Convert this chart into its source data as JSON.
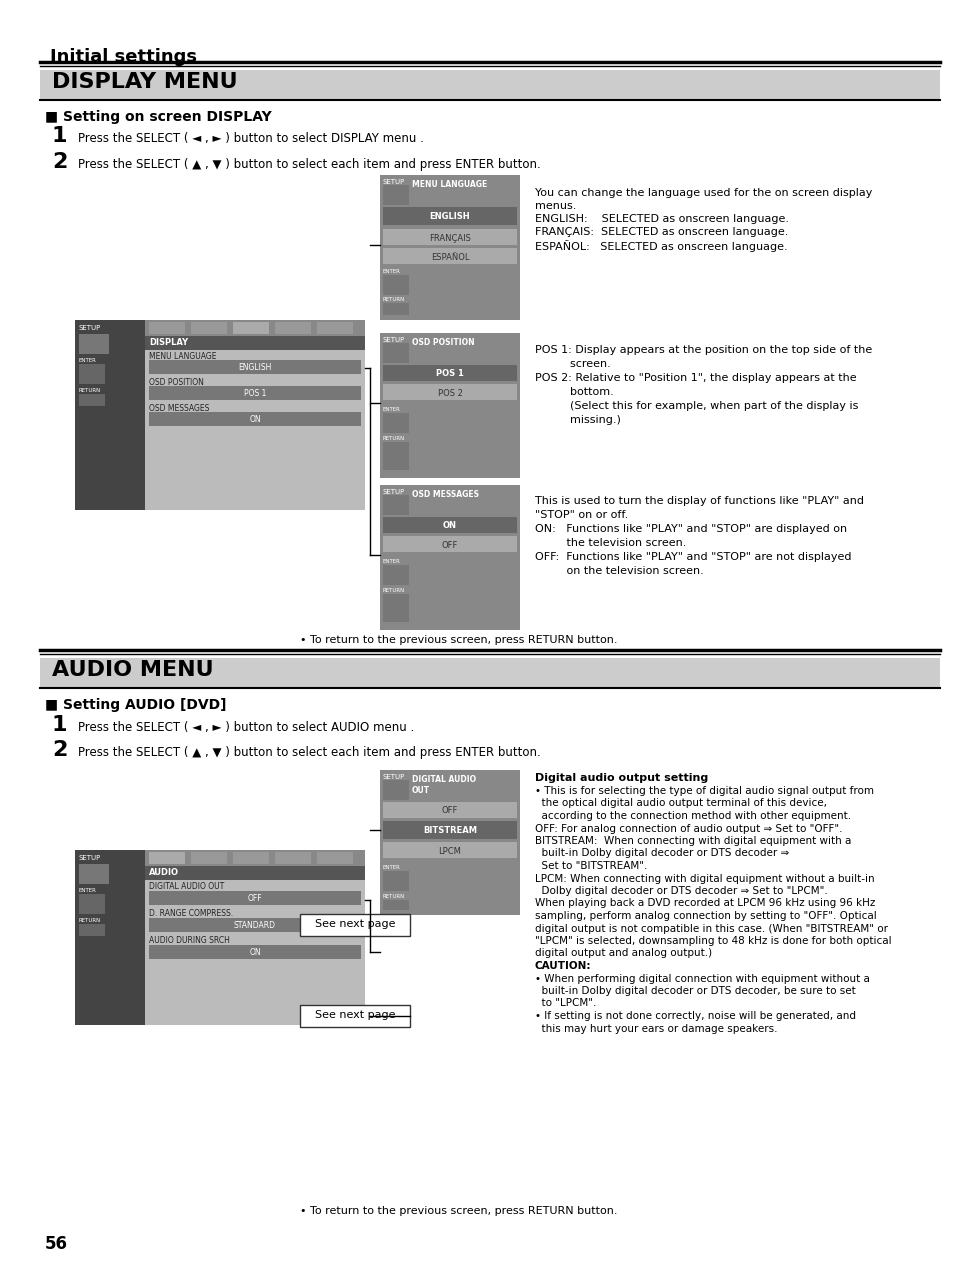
{
  "title": "Initial settings",
  "bg_color": "#ffffff",
  "section1_title": "DISPLAY MENU",
  "section1_subtitle": "Setting on screen DISPLAY",
  "section2_title": "AUDIO MENU",
  "section2_subtitle": "Setting AUDIO [DVD]",
  "step1_display": "Press the SELECT ( ◄ , ► ) button to select DISPLAY menu .",
  "step2_display": "Press the SELECT ( ▲ , ▼ ) button to select each item and press ENTER button.",
  "step1_audio": "Press the SELECT ( ◄ , ► ) button to select AUDIO menu .",
  "step2_audio": "Press the SELECT ( ▲ , ▼ ) button to select each item and press ENTER button.",
  "return_note": "• To return to the previous screen, press RETURN button.",
  "page_number": "56",
  "menu_lang_desc_line1": "You can change the language used for the on screen display",
  "menu_lang_desc_line2": "menus.",
  "menu_lang_desc_line3": "ENGLISH:    SELECTED as onscreen language.",
  "menu_lang_desc_line4": "FRANÇAIS:  SELECTED as onscreen language.",
  "menu_lang_desc_line5": "ESPAÑOL:   SELECTED as onscreen language.",
  "osd_pos_desc": [
    "POS 1: Display appears at the position on the top side of the",
    "          screen.",
    "POS 2: Relative to \"Position 1\", the display appears at the",
    "          bottom.",
    "          (Select this for example, when part of the display is",
    "          missing.)"
  ],
  "osd_msg_desc": [
    "This is used to turn the display of functions like \"PLAY\" and",
    "\"STOP\" on or off.",
    "ON:   Functions like \"PLAY\" and \"STOP\" are displayed on",
    "         the television screen.",
    "OFF:  Functions like \"PLAY\" and \"STOP\" are not displayed",
    "         on the television screen."
  ],
  "digital_audio_title": "Digital audio output setting",
  "digital_audio_desc": [
    "• This is for selecting the type of digital audio signal output from",
    "  the optical digital audio output terminal of this device,",
    "  according to the connection method with other equipment.",
    "OFF: For analog connection of audio output ⇒ Set to \"OFF\".",
    "BITSTREAM:  When connecting with digital equipment with a",
    "  built-in Dolby digital decoder or DTS decoder ⇒",
    "  Set to \"BITSTREAM\".",
    "LPCM: When connecting with digital equipment without a built-in",
    "  Dolby digital decoder or DTS decoder ⇒ Set to \"LPCM\".",
    "When playing back a DVD recorded at LPCM 96 kHz using 96 kHz",
    "sampling, perform analog connection by setting to \"OFF\". Optical",
    "digital output is not compatible in this case. (When \"BITSTREAM\" or",
    "\"LPCM\" is selected, downsampling to 48 kHz is done for both optical",
    "digital output and analog output.)",
    "CAUTION:",
    "• When performing digital connection with equipment without a",
    "  built-in Dolby digital decoder or DTS decoder, be sure to set",
    "  to \"LPCM\".",
    "• If setting is not done correctly, noise will be generated, and",
    "  this may hurt your ears or damage speakers."
  ],
  "panel_dark": "#555555",
  "panel_mid": "#777777",
  "panel_light": "#aaaaaa",
  "panel_lighter": "#cccccc",
  "panel_white_ish": "#dddddd",
  "selected_row": "#888888",
  "header_bg": "#bbbbbb"
}
